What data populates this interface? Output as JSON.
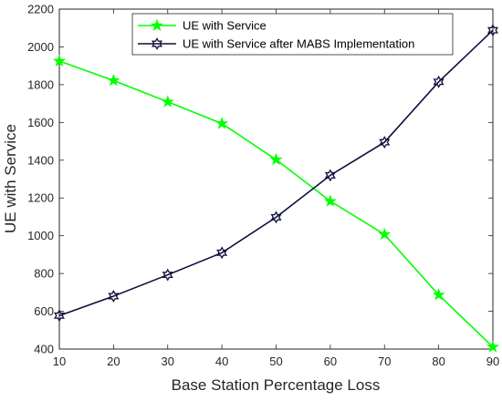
{
  "chart_data": {
    "type": "line",
    "title": "",
    "xlabel": "Base Station Percentage Loss",
    "ylabel": "UE with Service",
    "xlim": [
      10,
      90
    ],
    "ylim": [
      400,
      2200
    ],
    "x": [
      10,
      20,
      30,
      40,
      50,
      60,
      70,
      80,
      90
    ],
    "xticks": [
      "10",
      "20",
      "30",
      "40",
      "50",
      "60",
      "70",
      "80",
      "90"
    ],
    "yticks": [
      "400",
      "600",
      "800",
      "1000",
      "1200",
      "1400",
      "1600",
      "1800",
      "2000",
      "2200"
    ],
    "grid": false,
    "legend_position": "top-center",
    "series": [
      {
        "name": "UE with Service",
        "color": "#00ff00",
        "marker": "pentagram",
        "values": [
          1925,
          1822,
          1709,
          1594,
          1403,
          1183,
          1007,
          687,
          411
        ]
      },
      {
        "name": "UE with Service after MABS Implementation",
        "color": "#0e0e3d",
        "marker": "hexagram",
        "values": [
          577,
          680,
          793,
          910,
          1098,
          1320,
          1495,
          1815,
          2088
        ]
      }
    ]
  }
}
